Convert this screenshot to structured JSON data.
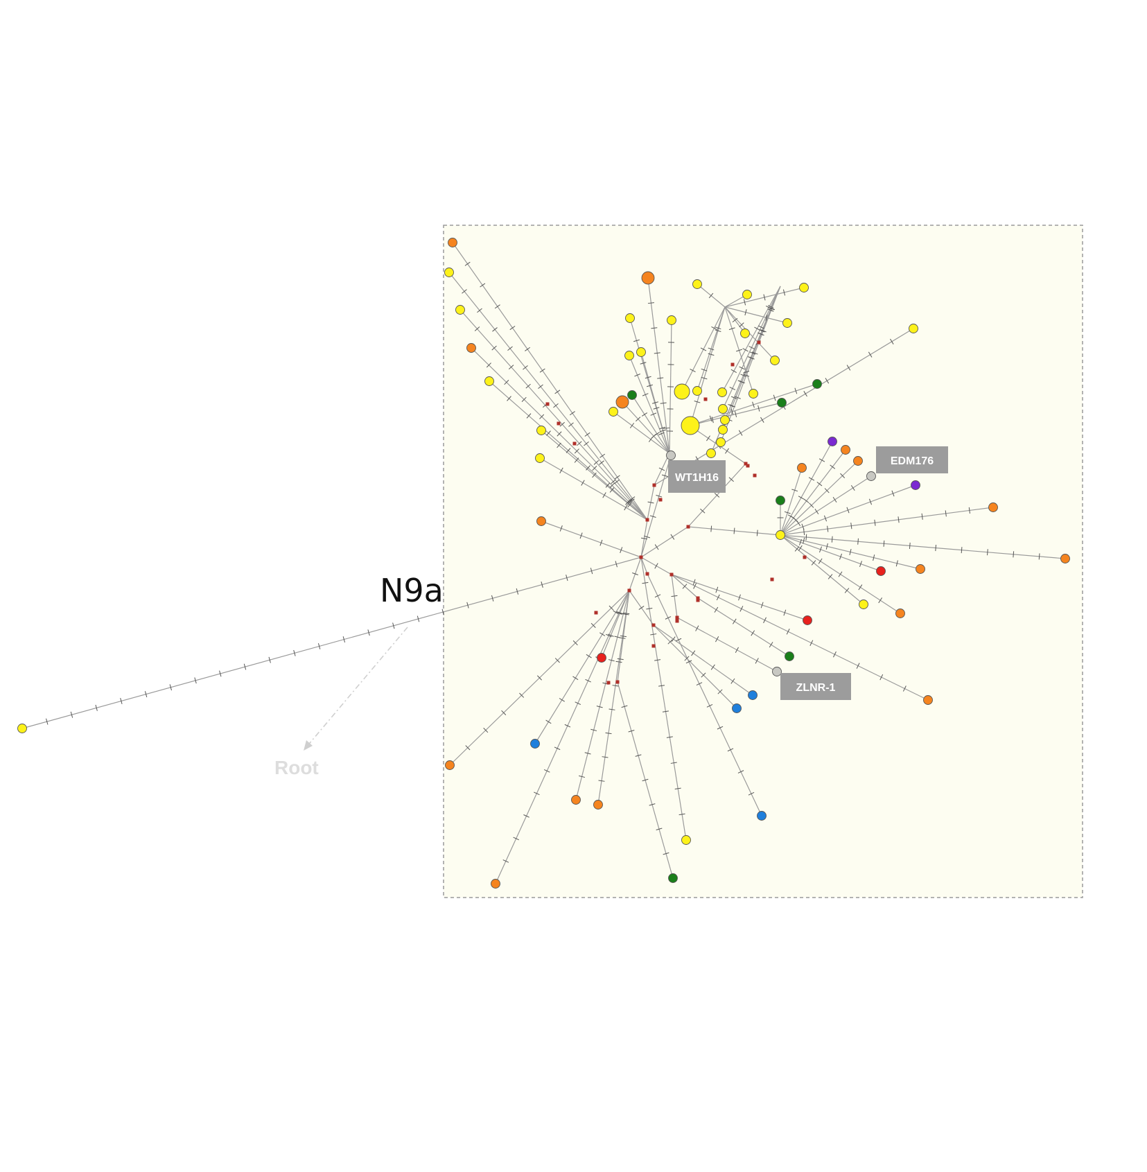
{
  "diagram": {
    "group_label": "N9a",
    "root_label": "Root",
    "highlighted_samples": [
      "WT1H16",
      "EDM176",
      "ZLNR-1"
    ],
    "colors": {
      "background_panel": "#fdfdf1",
      "panel_border": "#9a9a9a",
      "edge": "#9a9a9a",
      "median_vector": "#b0302a",
      "yellow": "#fdf21a",
      "orange": "#f5841f",
      "green": "#1a7f1a",
      "red": "#e8211d",
      "blue": "#1f7fdc",
      "purple": "#7b2ad1",
      "grey_sample": "#c8c8c2",
      "label_box": "#9c9c9c"
    },
    "node_color_groups": [
      "yellow",
      "orange",
      "green",
      "red",
      "blue",
      "purple",
      "grey"
    ]
  }
}
